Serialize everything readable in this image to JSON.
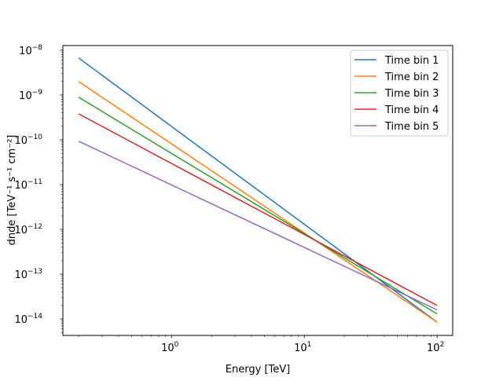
{
  "chart_data": {
    "type": "line",
    "title": "",
    "xlabel": "Energy [TeV]",
    "ylabel": "dnde [TeV⁻¹ s⁻¹ cm⁻²]",
    "xscale": "log",
    "yscale": "log",
    "xlim": [
      0.152,
      131
    ],
    "ylim": [
      4.3e-15,
      1.27e-08
    ],
    "x_ticks": [
      {
        "value": 1,
        "label": "10^0"
      },
      {
        "value": 10,
        "label": "10^1"
      },
      {
        "value": 100,
        "label": "10^2"
      }
    ],
    "y_ticks": [
      {
        "value": 1e-08,
        "label": "10^-8"
      },
      {
        "value": 1e-09,
        "label": "10^-9"
      },
      {
        "value": 1e-10,
        "label": "10^-10"
      },
      {
        "value": 1e-11,
        "label": "10^-11"
      },
      {
        "value": 1e-12,
        "label": "10^-12"
      },
      {
        "value": 1e-13,
        "label": "10^-13"
      },
      {
        "value": 1e-14,
        "label": "10^-14"
      }
    ],
    "grid": false,
    "legend": "top-right",
    "series": [
      {
        "name": "Time bin 1",
        "color": "#1f77b4",
        "x": [
          0.2,
          100
        ],
        "y": [
          6.7e-09,
          8.5e-15
        ]
      },
      {
        "name": "Time bin 2",
        "color": "#ff7f0e",
        "x": [
          0.2,
          100
        ],
        "y": [
          2e-09,
          8.5e-15
        ]
      },
      {
        "name": "Time bin 3",
        "color": "#2ca02c",
        "x": [
          0.2,
          100
        ],
        "y": [
          8.9e-10,
          1.3e-14
        ]
      },
      {
        "name": "Time bin 4",
        "color": "#d62728",
        "x": [
          0.2,
          100
        ],
        "y": [
          3.8e-10,
          2e-14
        ]
      },
      {
        "name": "Time bin 5",
        "color": "#9467bd",
        "x": [
          0.2,
          100
        ],
        "y": [
          9.3e-11,
          1.6e-14
        ]
      }
    ]
  }
}
